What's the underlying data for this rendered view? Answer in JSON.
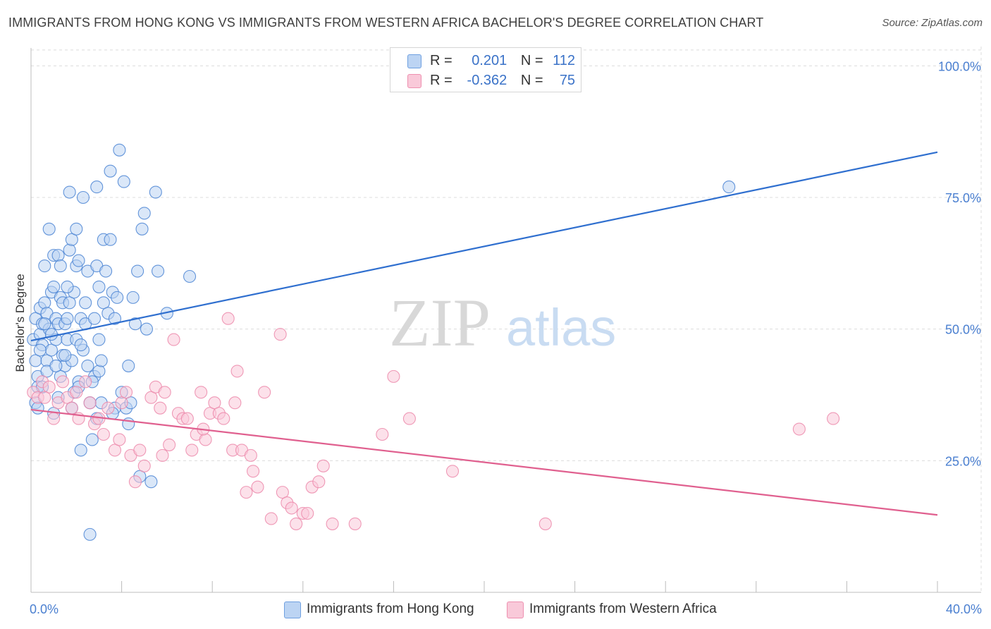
{
  "title": "IMMIGRANTS FROM HONG KONG VS IMMIGRANTS FROM WESTERN AFRICA BACHELOR'S DEGREE CORRELATION CHART",
  "source": "Source: ZipAtlas.com",
  "watermark": {
    "zip": "ZIP",
    "atlas": "atlas"
  },
  "legend": {
    "r_label": "R =",
    "n_label": "N =",
    "rows": [
      {
        "r": "0.201",
        "n": "112",
        "color": "#6fa0e0",
        "fill": "#bcd4f3"
      },
      {
        "r": "-0.362",
        "n": "75",
        "color": "#ee90b0",
        "fill": "#f9c9d9"
      }
    ]
  },
  "chart_data": {
    "type": "scatter",
    "xlabel": "",
    "ylabel": "Bachelor's Degree",
    "xlim": [
      0,
      40
    ],
    "ylim": [
      0,
      105
    ],
    "x_tick_labels": [
      {
        "value": 0,
        "label": "0.0%"
      },
      {
        "value": 40,
        "label": "40.0%"
      }
    ],
    "y_tick_labels": [
      {
        "value": 25,
        "label": "25.0%"
      },
      {
        "value": 50,
        "label": "50.0%"
      },
      {
        "value": 75,
        "label": "75.0%"
      },
      {
        "value": 100,
        "label": "100.0%"
      }
    ],
    "grid": "horizontal-dashed",
    "series": [
      {
        "name": "Immigrants from Hong Kong",
        "color": "#4a84d4",
        "fill": "#bcd4f3",
        "line_color": "#2f6fcf",
        "trend": {
          "x": [
            0,
            40
          ],
          "y": [
            47.8,
            83.6
          ]
        },
        "points": [
          [
            0.1,
            48
          ],
          [
            0.2,
            52
          ],
          [
            0.2,
            44
          ],
          [
            0.3,
            41
          ],
          [
            0.3,
            39
          ],
          [
            0.4,
            49
          ],
          [
            0.4,
            54
          ],
          [
            0.5,
            47
          ],
          [
            0.5,
            51
          ],
          [
            0.6,
            55
          ],
          [
            0.6,
            62
          ],
          [
            0.7,
            44
          ],
          [
            0.7,
            53
          ],
          [
            0.8,
            69
          ],
          [
            0.8,
            50
          ],
          [
            0.9,
            57
          ],
          [
            0.9,
            46
          ],
          [
            1.0,
            64
          ],
          [
            1.0,
            34
          ],
          [
            1.1,
            52
          ],
          [
            1.1,
            48
          ],
          [
            1.2,
            51
          ],
          [
            1.2,
            64
          ],
          [
            1.3,
            56
          ],
          [
            1.3,
            62
          ],
          [
            1.4,
            55
          ],
          [
            1.4,
            45
          ],
          [
            1.5,
            43
          ],
          [
            1.5,
            51
          ],
          [
            1.6,
            48
          ],
          [
            1.6,
            52
          ],
          [
            1.7,
            65
          ],
          [
            1.7,
            55
          ],
          [
            1.7,
            76
          ],
          [
            1.8,
            67
          ],
          [
            1.8,
            44
          ],
          [
            1.9,
            57
          ],
          [
            1.9,
            38
          ],
          [
            2.0,
            69
          ],
          [
            2.0,
            62
          ],
          [
            2.1,
            63
          ],
          [
            2.1,
            40
          ],
          [
            2.2,
            27
          ],
          [
            2.2,
            52
          ],
          [
            2.3,
            75
          ],
          [
            2.3,
            46
          ],
          [
            2.4,
            51
          ],
          [
            2.5,
            61
          ],
          [
            2.5,
            43
          ],
          [
            2.6,
            36
          ],
          [
            2.6,
            11
          ],
          [
            2.7,
            29
          ],
          [
            2.8,
            52
          ],
          [
            2.8,
            41
          ],
          [
            2.9,
            77
          ],
          [
            2.9,
            62
          ],
          [
            3.0,
            42
          ],
          [
            3.0,
            58
          ],
          [
            3.1,
            44
          ],
          [
            3.1,
            36
          ],
          [
            3.2,
            67
          ],
          [
            3.2,
            55
          ],
          [
            3.3,
            61
          ],
          [
            3.4,
            53
          ],
          [
            3.5,
            67
          ],
          [
            3.5,
            80
          ],
          [
            3.6,
            57
          ],
          [
            3.7,
            52
          ],
          [
            3.7,
            35
          ],
          [
            3.8,
            56
          ],
          [
            3.9,
            84
          ],
          [
            4.0,
            38
          ],
          [
            4.1,
            78
          ],
          [
            4.2,
            35
          ],
          [
            4.3,
            43
          ],
          [
            4.3,
            32
          ],
          [
            4.5,
            56
          ],
          [
            4.6,
            51
          ],
          [
            4.7,
            61
          ],
          [
            4.8,
            22
          ],
          [
            4.9,
            69
          ],
          [
            5.0,
            72
          ],
          [
            5.1,
            50
          ],
          [
            5.3,
            21
          ],
          [
            5.5,
            76
          ],
          [
            5.6,
            61
          ],
          [
            6.0,
            53
          ],
          [
            7.0,
            60
          ],
          [
            30.8,
            77
          ],
          [
            0.6,
            51
          ],
          [
            1.0,
            58
          ],
          [
            1.3,
            41
          ],
          [
            2.1,
            39
          ],
          [
            2.7,
            40
          ],
          [
            3.6,
            34
          ],
          [
            4.4,
            36
          ],
          [
            0.2,
            36
          ],
          [
            0.4,
            46
          ],
          [
            0.9,
            49
          ],
          [
            1.5,
            45
          ],
          [
            2.4,
            55
          ],
          [
            3.0,
            48
          ],
          [
            1.2,
            37
          ],
          [
            0.7,
            42
          ],
          [
            1.8,
            35
          ],
          [
            2.9,
            33
          ],
          [
            0.3,
            35
          ],
          [
            1.1,
            43
          ],
          [
            2.0,
            48
          ],
          [
            0.5,
            39
          ],
          [
            1.6,
            58
          ],
          [
            2.2,
            47
          ]
        ]
      },
      {
        "name": "Immigrants from Western Africa",
        "color": "#ec88aa",
        "fill": "#f9c9d9",
        "line_color": "#e0608f",
        "trend": {
          "x": [
            0,
            40
          ],
          "y": [
            34.7,
            14.7
          ]
        },
        "points": [
          [
            0.1,
            38
          ],
          [
            0.3,
            37
          ],
          [
            0.5,
            40
          ],
          [
            0.8,
            39
          ],
          [
            1.2,
            36
          ],
          [
            1.4,
            40
          ],
          [
            1.6,
            37
          ],
          [
            1.8,
            35
          ],
          [
            2.1,
            33
          ],
          [
            2.4,
            40
          ],
          [
            2.6,
            36
          ],
          [
            2.8,
            32
          ],
          [
            3.0,
            33
          ],
          [
            3.2,
            30
          ],
          [
            3.4,
            35
          ],
          [
            3.7,
            27
          ],
          [
            4.0,
            36
          ],
          [
            4.2,
            38
          ],
          [
            4.4,
            26
          ],
          [
            4.6,
            21
          ],
          [
            4.8,
            27
          ],
          [
            5.0,
            24
          ],
          [
            5.3,
            37
          ],
          [
            5.5,
            39
          ],
          [
            5.7,
            35
          ],
          [
            5.9,
            38
          ],
          [
            6.1,
            28
          ],
          [
            6.3,
            48
          ],
          [
            6.5,
            34
          ],
          [
            6.7,
            33
          ],
          [
            6.9,
            33
          ],
          [
            7.1,
            27
          ],
          [
            7.3,
            30
          ],
          [
            7.5,
            38
          ],
          [
            7.7,
            29
          ],
          [
            7.9,
            34
          ],
          [
            8.1,
            36
          ],
          [
            8.3,
            34
          ],
          [
            8.5,
            33
          ],
          [
            8.7,
            52
          ],
          [
            8.9,
            27
          ],
          [
            9.1,
            42
          ],
          [
            9.3,
            27
          ],
          [
            9.5,
            19
          ],
          [
            9.7,
            26
          ],
          [
            9.8,
            23
          ],
          [
            10.0,
            20
          ],
          [
            10.3,
            38
          ],
          [
            10.6,
            14
          ],
          [
            11.0,
            49
          ],
          [
            11.1,
            19
          ],
          [
            11.3,
            17
          ],
          [
            11.5,
            16
          ],
          [
            11.7,
            13
          ],
          [
            12.0,
            15
          ],
          [
            12.4,
            20
          ],
          [
            12.7,
            21
          ],
          [
            12.9,
            24
          ],
          [
            13.3,
            13
          ],
          [
            14.3,
            13
          ],
          [
            15.5,
            30
          ],
          [
            16.0,
            41
          ],
          [
            16.7,
            33
          ],
          [
            18.6,
            23
          ],
          [
            22.7,
            13
          ],
          [
            33.9,
            31
          ],
          [
            35.4,
            33
          ],
          [
            2.0,
            38
          ],
          [
            3.9,
            29
          ],
          [
            5.8,
            26
          ],
          [
            7.6,
            31
          ],
          [
            9.0,
            36
          ],
          [
            1.0,
            33
          ],
          [
            0.6,
            37
          ],
          [
            12.2,
            15
          ]
        ]
      }
    ]
  }
}
